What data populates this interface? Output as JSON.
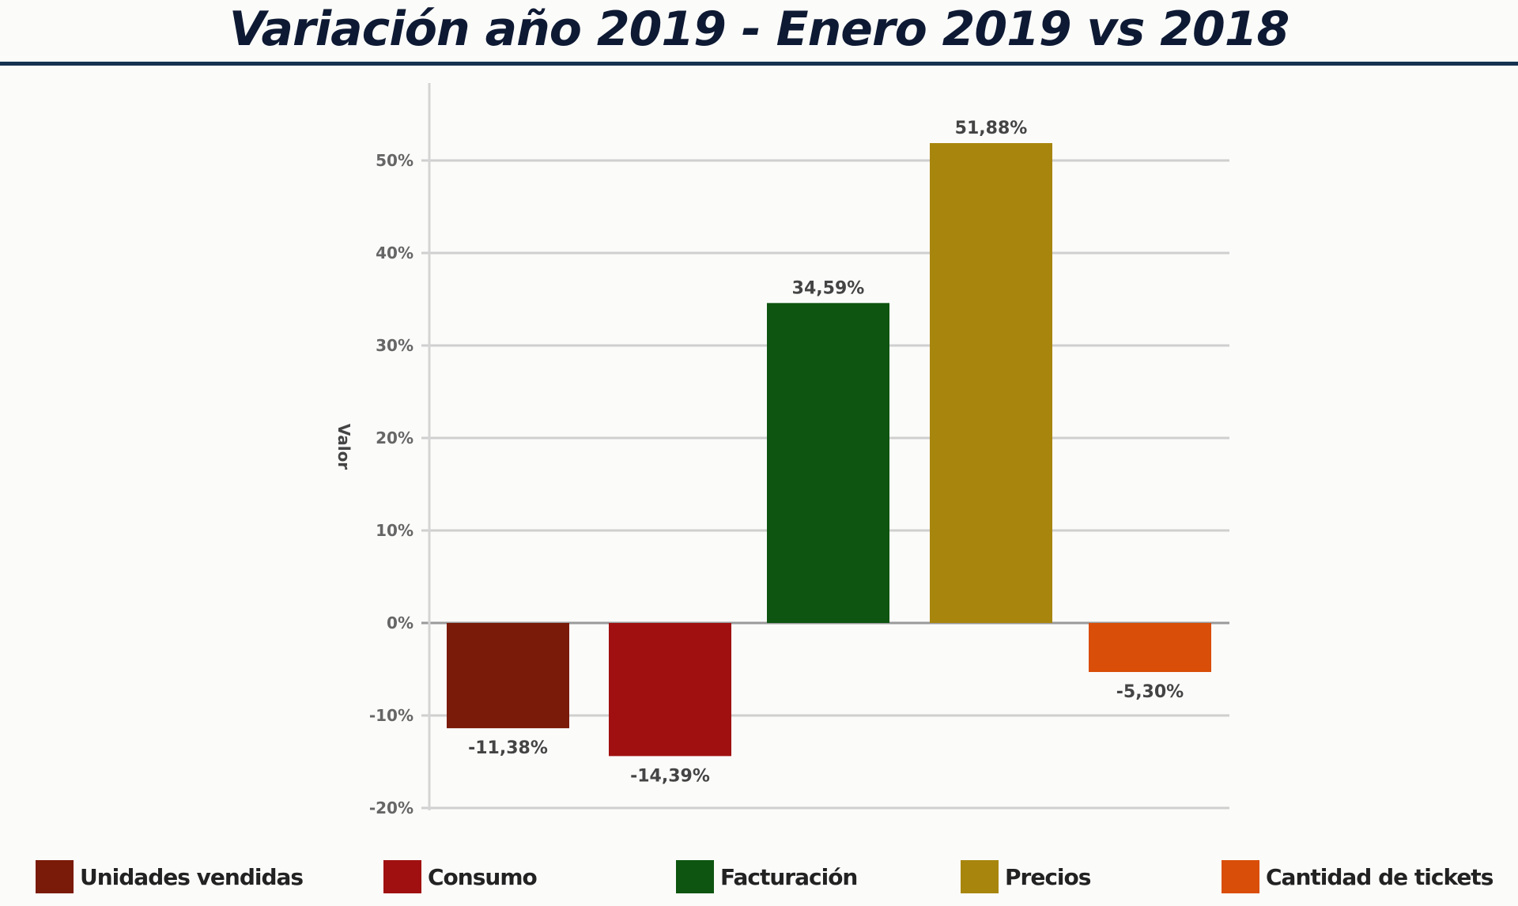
{
  "chart_data": {
    "type": "bar",
    "title": "Variación año 2019 - Enero 2019 vs 2018",
    "xlabel": "",
    "ylabel": "Valor",
    "ylim": [
      -20,
      55
    ],
    "yticks": [
      -20,
      -10,
      0,
      10,
      20,
      30,
      40,
      50
    ],
    "ytick_labels": [
      "-20%",
      "-10%",
      "0%",
      "10%",
      "20%",
      "30%",
      "40%",
      "50%"
    ],
    "grid": true,
    "legend_position": "bottom",
    "categories": [
      "Unidades vendidas",
      "Consumo",
      "Facturación",
      "Precios",
      "Cantidad de tickets"
    ],
    "values": [
      -11.38,
      -14.39,
      34.59,
      51.88,
      -5.3
    ],
    "data_labels": [
      "-11,38%",
      "-14,39%",
      "34,59%",
      "51,88%",
      "-5,30%"
    ],
    "colors": [
      "#7a1a08",
      "#a01010",
      "#0d5510",
      "#a8860e",
      "#d94e08"
    ]
  }
}
